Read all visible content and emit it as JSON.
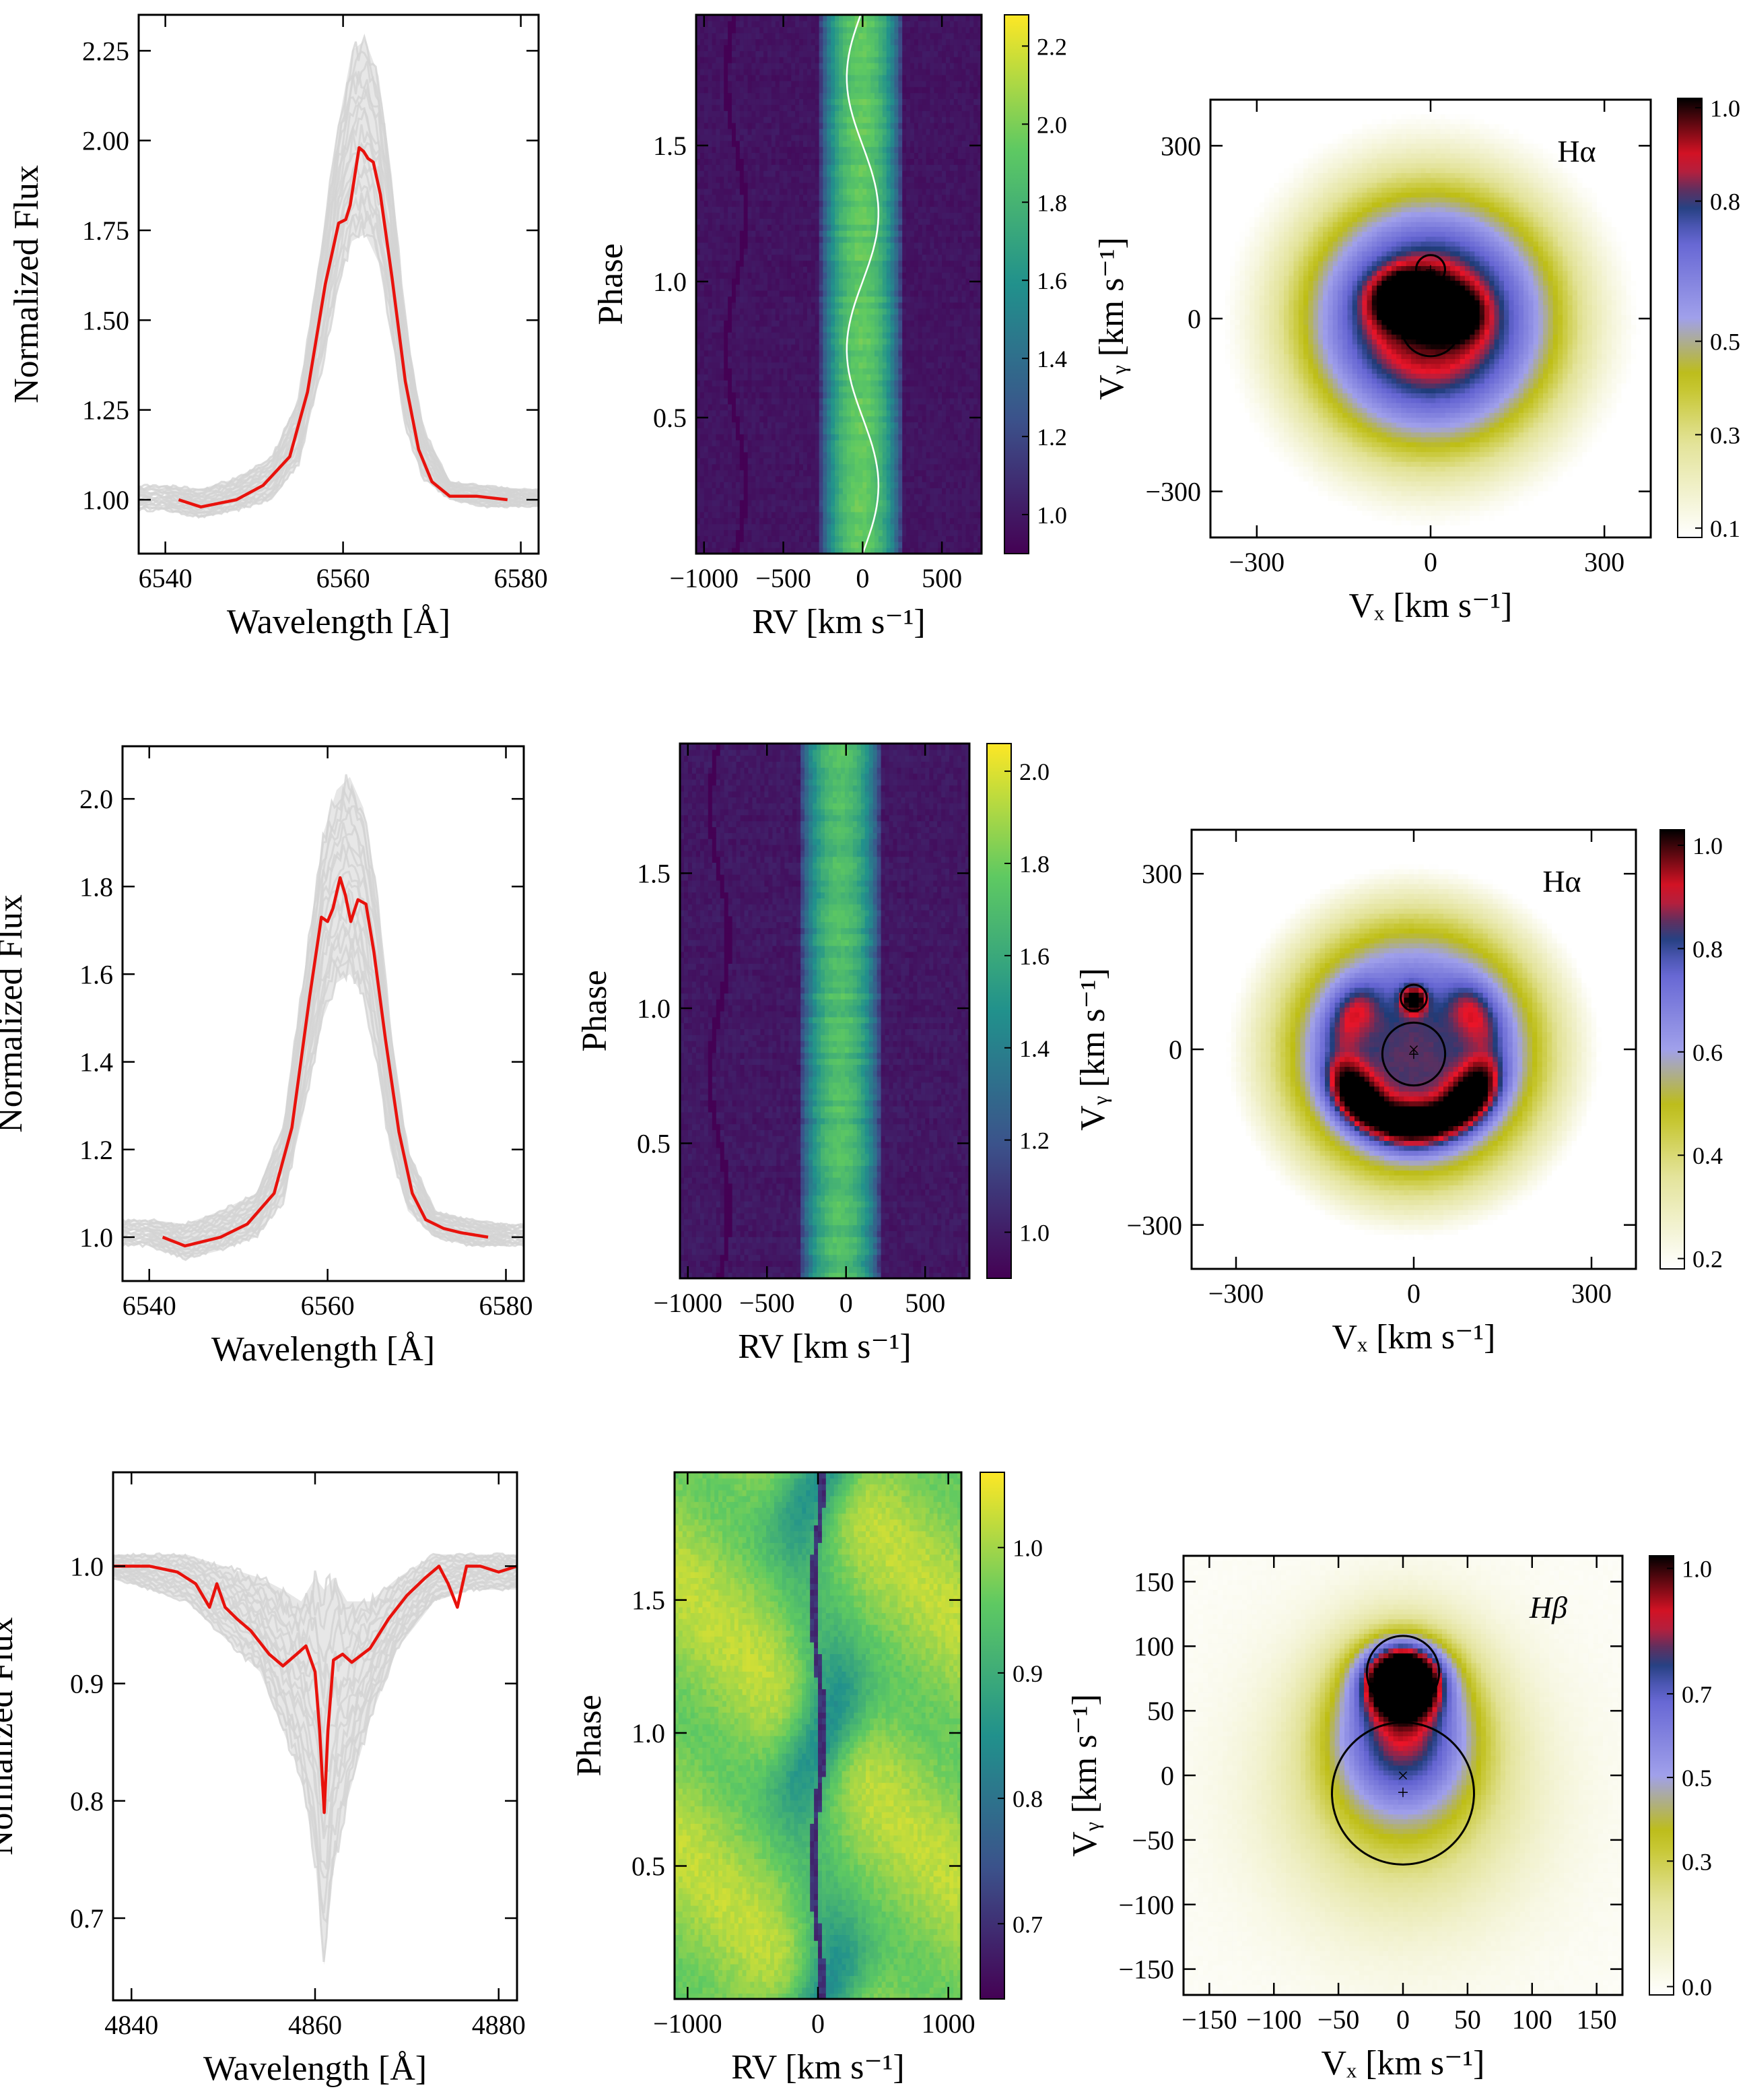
{
  "chart_data": [
    {
      "panel": "profile-1",
      "type": "line",
      "xlabel": "Wavelength [Å]",
      "ylabel": "Normalized Flux",
      "xlim": [
        6537,
        6582
      ],
      "ylim": [
        0.85,
        2.35
      ],
      "xticks": [
        6540,
        6560,
        6580
      ],
      "xtick_labels": [
        "6540",
        "6560",
        "6580"
      ],
      "yticks": [
        1.0,
        1.25,
        1.5,
        1.75,
        2.0,
        2.25
      ],
      "ytick_labels": [
        "1.00",
        "1.25",
        "1.50",
        "1.75",
        "2.00",
        "2.25"
      ],
      "mean_profile": {
        "color": "#e8120c",
        "x": [
          6541.5,
          6544,
          6546,
          6548,
          6551,
          6554,
          6556,
          6558,
          6559.5,
          6560.3,
          6560.8,
          6561.3,
          6561.8,
          6562.3,
          6562.8,
          6563.4,
          6564.2,
          6565.5,
          6567,
          6568.5,
          6570,
          6572,
          6575,
          6578.5
        ],
        "y": [
          1.0,
          0.98,
          0.99,
          1.0,
          1.04,
          1.12,
          1.3,
          1.6,
          1.77,
          1.78,
          1.82,
          1.9,
          1.98,
          1.97,
          1.95,
          1.94,
          1.85,
          1.62,
          1.33,
          1.14,
          1.05,
          1.01,
          1.01,
          1.0
        ]
      },
      "individual_spectra": {
        "color": "#d3d3d3",
        "count": 18,
        "x": [
          6540,
          6544,
          6548,
          6552,
          6555,
          6557.5,
          6559.5,
          6561,
          6562.5,
          6564,
          6565.5,
          6567,
          6569,
          6572,
          6576,
          6580
        ],
        "y_low": [
          0.97,
          0.95,
          0.97,
          1.0,
          1.1,
          1.35,
          1.6,
          1.72,
          1.74,
          1.66,
          1.45,
          1.2,
          1.06,
          1.0,
          0.98,
          0.98
        ],
        "y_high": [
          1.04,
          1.03,
          1.06,
          1.12,
          1.28,
          1.7,
          2.05,
          2.25,
          2.28,
          2.18,
          1.9,
          1.5,
          1.2,
          1.05,
          1.04,
          1.03
        ]
      }
    },
    {
      "panel": "trail-1",
      "type": "heatmap",
      "xlabel": "RV [km s⁻¹]",
      "ylabel": "Phase",
      "xlim": [
        -1050,
        750
      ],
      "ylim": [
        0,
        1.98
      ],
      "xticks": [
        -1000,
        -500,
        0,
        500
      ],
      "xtick_labels": [
        "−1000",
        "−500",
        "0",
        "500"
      ],
      "yticks": [
        0.5,
        1.0,
        1.5
      ],
      "ytick_labels": [
        "0.5",
        "1.0",
        "1.5"
      ],
      "colorbar": {
        "range": [
          0.9,
          2.28
        ],
        "ticks": [
          1.0,
          1.2,
          1.4,
          1.6,
          1.8,
          2.0,
          2.2
        ],
        "tick_labels": [
          "1.0",
          "1.2",
          "1.4",
          "1.6",
          "1.8",
          "2.0",
          "2.2"
        ],
        "colormap": "viridis"
      },
      "emission_rv_range": [
        -280,
        260
      ],
      "absorption_track": {
        "gamma": -800,
        "amplitude": 60,
        "phase_offset": 0.0
      },
      "rv_curve": {
        "gamma": 0,
        "amplitude": 100,
        "phase_offset": 0.0,
        "color": "#ffffff"
      }
    },
    {
      "panel": "tomogram-1",
      "type": "heatmap",
      "line": "Hα",
      "xlabel": "Vₓ [km s⁻¹]",
      "ylabel": "Vᵧ [km s⁻¹]",
      "xlim": [
        -380,
        380
      ],
      "ylim": [
        -380,
        380
      ],
      "xticks": [
        -300,
        0,
        300
      ],
      "xtick_labels": [
        "−300",
        "0",
        "300"
      ],
      "yticks": [
        -300,
        0,
        300
      ],
      "ytick_labels": [
        "−300",
        "0",
        "300"
      ],
      "colorbar": {
        "range": [
          0.08,
          1.02
        ],
        "ticks": [
          0.1,
          0.3,
          0.5,
          0.8,
          1.0
        ],
        "tick_labels": [
          "0.1",
          "0.3",
          "0.5",
          "0.8",
          "1.0"
        ],
        "colormap": "doppler"
      },
      "lobes": {
        "secondary_center": [
          0,
          85
        ],
        "primary_center": [
          0,
          -15
        ],
        "secondary_radius": 25,
        "primary_radius": 50
      },
      "markers": [
        {
          "symbol": "+",
          "x": 0,
          "y": 85
        },
        {
          "symbol": "+",
          "x": 0,
          "y": -15
        }
      ]
    },
    {
      "panel": "profile-2",
      "type": "line",
      "xlabel": "Wavelength [Å]",
      "ylabel": "Normalized Flux",
      "xlim": [
        6537,
        6582
      ],
      "ylim": [
        0.9,
        2.12
      ],
      "xticks": [
        6540,
        6560,
        6580
      ],
      "xtick_labels": [
        "6540",
        "6560",
        "6580"
      ],
      "yticks": [
        1.0,
        1.2,
        1.4,
        1.6,
        1.8,
        2.0
      ],
      "ytick_labels": [
        "1.0",
        "1.2",
        "1.4",
        "1.6",
        "1.8",
        "2.0"
      ],
      "mean_profile": {
        "color": "#e8120c",
        "x": [
          6541.5,
          6544,
          6546,
          6548,
          6551,
          6554,
          6556,
          6558,
          6559.3,
          6560.0,
          6560.6,
          6561.4,
          6562.0,
          6562.6,
          6563.4,
          6564.3,
          6565.2,
          6566.5,
          6568,
          6569.5,
          6571,
          6573,
          6575,
          6578
        ],
        "y": [
          1.0,
          0.98,
          0.99,
          1.0,
          1.03,
          1.1,
          1.25,
          1.55,
          1.73,
          1.72,
          1.75,
          1.82,
          1.78,
          1.72,
          1.77,
          1.76,
          1.65,
          1.45,
          1.24,
          1.1,
          1.04,
          1.02,
          1.01,
          1.0
        ]
      },
      "individual_spectra": {
        "color": "#d3d3d3",
        "count": 18,
        "x": [
          6540,
          6544,
          6548,
          6552,
          6555,
          6557.5,
          6559.5,
          6561,
          6562.5,
          6564,
          6565.5,
          6567,
          6569,
          6572,
          6576,
          6580
        ],
        "y_low": [
          0.98,
          0.95,
          0.97,
          1.0,
          1.08,
          1.3,
          1.5,
          1.58,
          1.6,
          1.55,
          1.4,
          1.2,
          1.06,
          1.0,
          0.98,
          0.98
        ],
        "y_high": [
          1.04,
          1.03,
          1.06,
          1.1,
          1.25,
          1.62,
          1.92,
          2.02,
          2.05,
          1.98,
          1.8,
          1.48,
          1.2,
          1.06,
          1.04,
          1.03
        ]
      }
    },
    {
      "panel": "trail-2",
      "type": "heatmap",
      "xlabel": "RV [km s⁻¹]",
      "ylabel": "Phase",
      "xlim": [
        -1050,
        780
      ],
      "ylim": [
        0,
        1.98
      ],
      "xticks": [
        -1000,
        -500,
        0,
        500
      ],
      "xtick_labels": [
        "−1000",
        "−500",
        "0",
        "500"
      ],
      "yticks": [
        0.5,
        1.0,
        1.5
      ],
      "ytick_labels": [
        "0.5",
        "1.0",
        "1.5"
      ],
      "colorbar": {
        "range": [
          0.9,
          2.06
        ],
        "ticks": [
          1.0,
          1.2,
          1.4,
          1.6,
          1.8,
          2.0
        ],
        "tick_labels": [
          "1.0",
          "1.2",
          "1.4",
          "1.6",
          "1.8",
          "2.0"
        ],
        "colormap": "viridis"
      },
      "emission_rv_range": [
        -300,
        230
      ],
      "absorption_track": {
        "gamma": -800,
        "amplitude": 60,
        "phase_offset": 0.0
      },
      "rv_curve": null
    },
    {
      "panel": "tomogram-2",
      "type": "heatmap",
      "line": "Hα",
      "xlabel": "Vₓ [km s⁻¹]",
      "ylabel": "Vᵧ [km s⁻¹]",
      "xlim": [
        -375,
        375
      ],
      "ylim": [
        -375,
        375
      ],
      "xticks": [
        -300,
        0,
        300
      ],
      "xtick_labels": [
        "−300",
        "0",
        "300"
      ],
      "yticks": [
        -300,
        0,
        300
      ],
      "ytick_labels": [
        "−300",
        "0",
        "300"
      ],
      "colorbar": {
        "range": [
          0.18,
          1.03
        ],
        "ticks": [
          0.2,
          0.4,
          0.6,
          0.8,
          1.0
        ],
        "tick_labels": [
          "0.2",
          "0.4",
          "0.6",
          "0.8",
          "1.0"
        ],
        "colormap": "doppler"
      },
      "lobes": {
        "secondary_center": [
          0,
          88
        ],
        "primary_center": [
          0,
          -8
        ],
        "secondary_radius": 22,
        "primary_radius": 53
      },
      "markers": [
        {
          "symbol": "+",
          "x": 0,
          "y": 88
        },
        {
          "symbol": "×",
          "x": 0,
          "y": 0
        },
        {
          "symbol": "+",
          "x": 0,
          "y": -8
        }
      ]
    },
    {
      "panel": "profile-3",
      "type": "line",
      "xlabel": "Wavelength [Å]",
      "ylabel": "Normalized Flux",
      "xlim": [
        4838,
        4882
      ],
      "ylim": [
        0.63,
        1.08
      ],
      "xticks": [
        4840,
        4860,
        4880
      ],
      "xtick_labels": [
        "4840",
        "4860",
        "4880"
      ],
      "yticks": [
        0.7,
        0.8,
        0.9,
        1.0
      ],
      "ytick_labels": [
        "0.7",
        "0.8",
        "0.9",
        "1.0"
      ],
      "mean_profile": {
        "color": "#e8120c",
        "x": [
          4838,
          4842,
          4845,
          4847,
          4848.5,
          4849.3,
          4850.2,
          4851.5,
          4853,
          4855,
          4856.5,
          4858,
          4859,
          4860,
          4860.5,
          4861,
          4861.4,
          4862,
          4863,
          4864,
          4866,
          4868,
          4870,
          4872,
          4873.5,
          4874.5,
          4875.5,
          4876.5,
          4878,
          4880,
          4882
        ],
        "y": [
          1.0,
          1.0,
          0.995,
          0.985,
          0.965,
          0.985,
          0.965,
          0.955,
          0.945,
          0.925,
          0.915,
          0.925,
          0.932,
          0.91,
          0.86,
          0.79,
          0.86,
          0.92,
          0.925,
          0.918,
          0.93,
          0.955,
          0.975,
          0.99,
          1.0,
          0.985,
          0.965,
          1.0,
          1.0,
          0.995,
          1.0
        ]
      },
      "individual_spectra": {
        "color": "#d3d3d3",
        "count": 18,
        "x": [
          4838,
          4842,
          4846,
          4850,
          4854,
          4856.5,
          4858.5,
          4860,
          4861,
          4862,
          4863.5,
          4866,
          4869,
          4873,
          4877,
          4882
        ],
        "y_low": [
          0.99,
          0.98,
          0.97,
          0.94,
          0.91,
          0.86,
          0.82,
          0.75,
          0.66,
          0.74,
          0.8,
          0.87,
          0.93,
          0.97,
          0.98,
          0.98
        ],
        "y_high": [
          1.01,
          1.01,
          1.01,
          1.0,
          0.99,
          0.98,
          0.97,
          0.99,
          0.98,
          0.99,
          0.97,
          0.97,
          0.99,
          1.01,
          1.01,
          1.01
        ]
      }
    },
    {
      "panel": "trail-3",
      "type": "heatmap",
      "xlabel": "RV [km s⁻¹]",
      "ylabel": "Phase",
      "xlim": [
        -1100,
        1100
      ],
      "ylim": [
        0,
        1.98
      ],
      "xticks": [
        -1000,
        0,
        1000
      ],
      "xtick_labels": [
        "−1000",
        "0",
        "1000"
      ],
      "yticks": [
        0.5,
        1.0,
        1.5
      ],
      "ytick_labels": [
        "0.5",
        "1.0",
        "1.5"
      ],
      "colorbar": {
        "range": [
          0.64,
          1.06
        ],
        "ticks": [
          0.7,
          0.8,
          0.9,
          1.0
        ],
        "tick_labels": [
          "0.7",
          "0.8",
          "0.9",
          "1.0"
        ],
        "colormap": "viridis"
      },
      "absorption_core": {
        "gamma": 0,
        "amplitude": 40,
        "phase_offset": 0.0
      },
      "rv_curve": null
    },
    {
      "panel": "tomogram-3",
      "type": "heatmap",
      "line": "Hβ",
      "xlabel": "Vₓ [km s⁻¹]",
      "ylabel": "Vᵧ [km s⁻¹]",
      "xlim": [
        -170,
        170
      ],
      "ylim": [
        -170,
        170
      ],
      "xticks": [
        -150,
        -100,
        -50,
        0,
        50,
        100,
        150
      ],
      "xtick_labels": [
        "−150",
        "−100",
        "−50",
        "0",
        "50",
        "100",
        "150"
      ],
      "yticks": [
        -150,
        -100,
        -50,
        0,
        50,
        100,
        150
      ],
      "ytick_labels": [
        "−150",
        "−100",
        "−50",
        "0",
        "50",
        "100",
        "150"
      ],
      "colorbar": {
        "range": [
          -0.02,
          1.03
        ],
        "ticks": [
          0.0,
          0.3,
          0.5,
          0.7,
          1.0
        ],
        "tick_labels": [
          "0.0",
          "0.3",
          "0.5",
          "0.7",
          "1.0"
        ],
        "colormap": "doppler"
      },
      "lobes": {
        "secondary_center": [
          0,
          80
        ],
        "primary_center": [
          0,
          -14
        ],
        "secondary_radius": 28,
        "primary_radius": 55
      },
      "markers": [
        {
          "symbol": "×",
          "x": 0,
          "y": 0
        },
        {
          "symbol": "+",
          "x": 0,
          "y": -13
        }
      ]
    }
  ]
}
